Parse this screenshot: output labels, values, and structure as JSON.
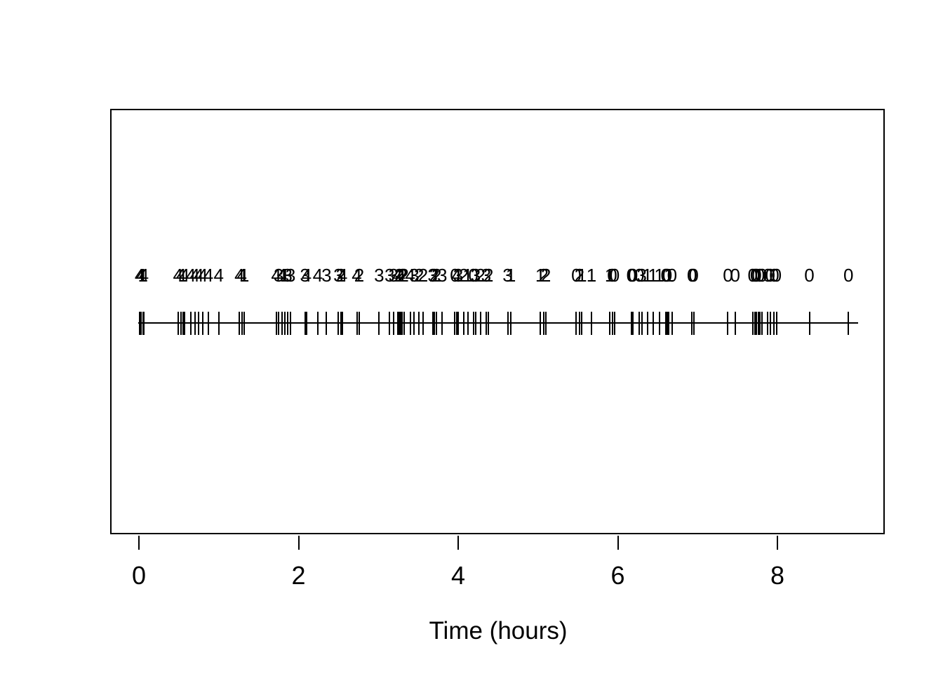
{
  "figure": {
    "background_color": "#ffffff",
    "stroke_color": "#000000"
  },
  "chart_data": {
    "type": "scatter",
    "subtype": "event-timeline-with-marks",
    "title": "",
    "xlabel": "Time (hours)",
    "ylabel": "",
    "xlim": [
      0,
      9.01
    ],
    "xticks": [
      0,
      2,
      4,
      6,
      8
    ],
    "xtick_labels": [
      "0",
      "2",
      "4",
      "6",
      "8"
    ],
    "grid": false,
    "legend": false,
    "baseline": {
      "from": -0.01,
      "to": 9.01
    },
    "description": "Horizontal event line with a short vertical tick at each event time; the digit printed above each tick is the mark value for that event.",
    "events": [
      [
        0.01,
        4
      ],
      [
        0.03,
        4
      ],
      [
        0.05,
        1
      ],
      [
        0.06,
        4
      ],
      [
        0.49,
        4
      ],
      [
        0.53,
        4
      ],
      [
        0.55,
        1
      ],
      [
        0.57,
        4
      ],
      [
        0.65,
        4
      ],
      [
        0.7,
        4
      ],
      [
        0.75,
        4
      ],
      [
        0.8,
        4
      ],
      [
        0.87,
        4
      ],
      [
        1.0,
        4
      ],
      [
        1.26,
        4
      ],
      [
        1.29,
        4
      ],
      [
        1.32,
        1
      ],
      [
        1.72,
        4
      ],
      [
        1.75,
        3
      ],
      [
        1.79,
        4
      ],
      [
        1.83,
        1
      ],
      [
        1.86,
        3
      ],
      [
        1.9,
        3
      ],
      [
        2.08,
        3
      ],
      [
        2.1,
        4
      ],
      [
        2.24,
        4
      ],
      [
        2.35,
        3
      ],
      [
        2.5,
        3
      ],
      [
        2.53,
        2
      ],
      [
        2.55,
        4
      ],
      [
        2.73,
        4
      ],
      [
        2.76,
        2
      ],
      [
        3.01,
        3
      ],
      [
        3.14,
        3
      ],
      [
        3.19,
        3
      ],
      [
        3.24,
        4
      ],
      [
        3.26,
        2
      ],
      [
        3.28,
        4
      ],
      [
        3.3,
        2
      ],
      [
        3.32,
        2
      ],
      [
        3.4,
        4
      ],
      [
        3.45,
        3
      ],
      [
        3.51,
        2
      ],
      [
        3.56,
        2
      ],
      [
        3.68,
        3
      ],
      [
        3.7,
        2
      ],
      [
        3.73,
        2
      ],
      [
        3.8,
        3
      ],
      [
        3.96,
        0
      ],
      [
        3.98,
        4
      ],
      [
        4.0,
        3
      ],
      [
        4.07,
        2
      ],
      [
        4.12,
        1
      ],
      [
        4.19,
        0
      ],
      [
        4.22,
        3
      ],
      [
        4.28,
        2
      ],
      [
        4.35,
        3
      ],
      [
        4.38,
        2
      ],
      [
        4.62,
        3
      ],
      [
        4.66,
        1
      ],
      [
        5.03,
        1
      ],
      [
        5.07,
        2
      ],
      [
        5.1,
        2
      ],
      [
        5.48,
        0
      ],
      [
        5.52,
        2
      ],
      [
        5.55,
        1
      ],
      [
        5.67,
        1
      ],
      [
        5.9,
        1
      ],
      [
        5.93,
        0
      ],
      [
        5.96,
        0
      ],
      [
        6.17,
        0
      ],
      [
        6.19,
        0
      ],
      [
        6.27,
        0
      ],
      [
        6.3,
        3
      ],
      [
        6.37,
        1
      ],
      [
        6.44,
        1
      ],
      [
        6.52,
        1
      ],
      [
        6.6,
        0
      ],
      [
        6.62,
        0
      ],
      [
        6.64,
        1
      ],
      [
        6.68,
        0
      ],
      [
        6.93,
        0
      ],
      [
        6.95,
        0
      ],
      [
        7.38,
        0
      ],
      [
        7.47,
        0
      ],
      [
        7.69,
        0
      ],
      [
        7.72,
        0
      ],
      [
        7.74,
        0
      ],
      [
        7.76,
        1
      ],
      [
        7.78,
        0
      ],
      [
        7.81,
        0
      ],
      [
        7.88,
        0
      ],
      [
        7.91,
        0
      ],
      [
        7.96,
        0
      ],
      [
        7.99,
        0
      ],
      [
        8.4,
        0
      ],
      [
        8.89,
        0
      ]
    ]
  }
}
